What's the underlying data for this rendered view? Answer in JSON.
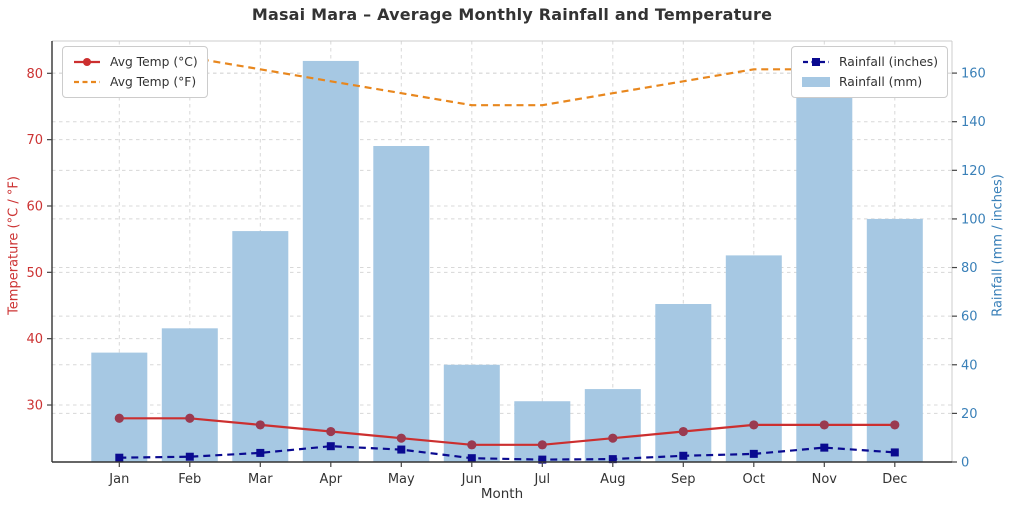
{
  "chart_data": {
    "type": "bar+line",
    "title": "Masai Mara – Average Monthly Rainfall and Temperature",
    "xlabel": "Month",
    "ylabel_left": "Temperature (°C / °F)",
    "ylabel_right": "Rainfall (mm / inches)",
    "categories": [
      "Jan",
      "Feb",
      "Mar",
      "Apr",
      "May",
      "Jun",
      "Jul",
      "Aug",
      "Sep",
      "Oct",
      "Nov",
      "Dec"
    ],
    "series": [
      {
        "name": "Rainfall (mm)",
        "type": "bar",
        "axis": "right",
        "color": "#a6c8e3",
        "values": [
          45,
          55,
          95,
          165,
          130,
          40,
          25,
          30,
          65,
          85,
          150,
          100
        ]
      },
      {
        "name": "Rainfall (inches)",
        "type": "line",
        "style": "dashed",
        "marker": "square",
        "axis": "right",
        "color": "#0a0a90",
        "values": [
          1.77,
          2.17,
          3.74,
          6.5,
          5.12,
          1.57,
          0.98,
          1.18,
          2.56,
          3.35,
          5.91,
          3.94
        ]
      },
      {
        "name": "Avg Temp (°C)",
        "type": "line",
        "style": "solid",
        "marker": "circle",
        "axis": "left",
        "color": "#cc2f2f",
        "marker_color": "#9a3a50",
        "values": [
          28,
          28,
          27,
          26,
          25,
          24,
          24,
          25,
          26,
          27,
          27,
          27
        ]
      },
      {
        "name": "Avg Temp (°F)",
        "type": "line",
        "style": "dashed",
        "marker": "none",
        "axis": "left",
        "color": "#e8871e",
        "values": [
          82.4,
          82.4,
          80.6,
          78.8,
          77.0,
          75.2,
          75.2,
          77.0,
          78.8,
          80.6,
          80.6,
          80.6
        ]
      }
    ],
    "ylim_left": [
      21.41,
      84.87
    ],
    "ylim_right": [
      0,
      173.2
    ],
    "yticks_left": [
      30,
      40,
      50,
      60,
      70,
      80
    ],
    "yticks_right": [
      0,
      20,
      40,
      60,
      80,
      100,
      120,
      140,
      160
    ],
    "grid": true,
    "legend_left_position": "upper left",
    "legend_right_position": "upper right",
    "colors": {
      "left_axis_text": "#cc3333",
      "right_axis_text": "#3a80b8",
      "x_axis_text": "#333333",
      "grid": "#d8d8d8",
      "spine_dark": "#333333",
      "spine_light": "#cccccc",
      "tick": "#444444",
      "title": "#333333"
    }
  }
}
